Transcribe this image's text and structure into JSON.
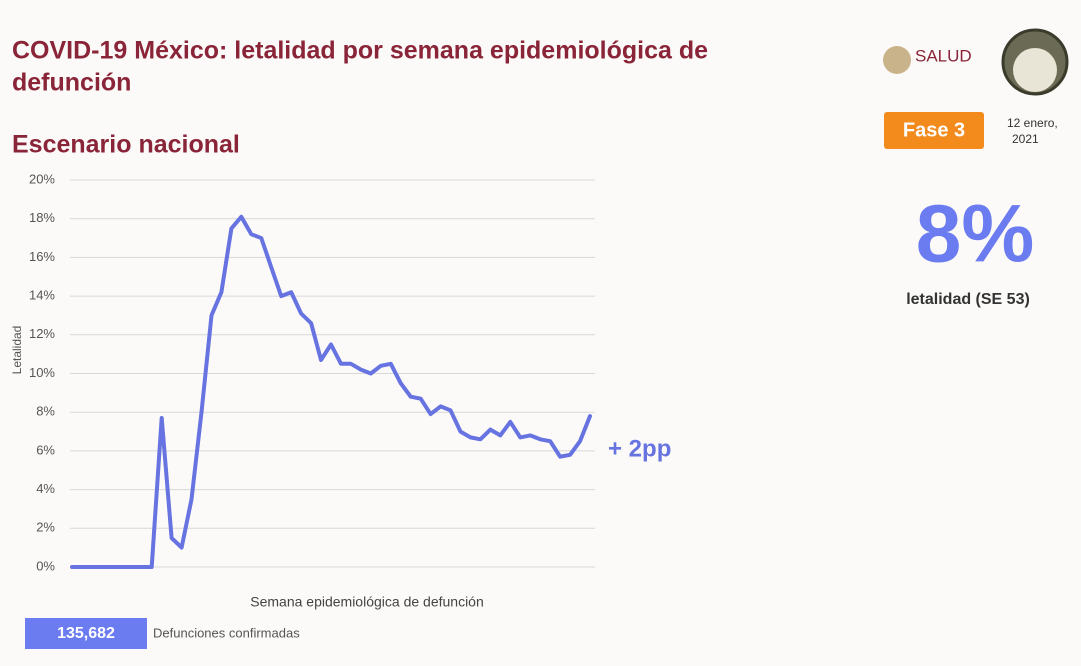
{
  "chart_data": {
    "type": "line",
    "title": "COVID-19 México: letalidad por semana epidemiológica de defunción",
    "subtitle": "Escenario nacional",
    "y_label": "Letalidad",
    "x_label": "Semana epidemiológica de defunción",
    "annotation": "+ 2pp",
    "categories": [
      null,
      null,
      null,
      null,
      null,
      null,
      null,
      null,
      null,
      null,
      null,
      null,
      null,
      null,
      null,
      null,
      null,
      null,
      null,
      null,
      null,
      null,
      null,
      null,
      null,
      null,
      null,
      null,
      null,
      null,
      null,
      null,
      null,
      null,
      null,
      null,
      null,
      null,
      null,
      null,
      null,
      null,
      null,
      null,
      null,
      null,
      null,
      null,
      null,
      null,
      null,
      null,
      null
    ],
    "values": [
      0,
      0,
      0,
      0,
      0,
      0,
      0,
      0,
      0,
      7.7,
      1.5,
      1.0,
      3.5,
      8,
      13,
      14.2,
      17.5,
      18.1,
      17.2,
      17.0,
      15.5,
      14.0,
      14.2,
      13.1,
      12.6,
      10.7,
      11.5,
      10.5,
      10.5,
      10.2,
      10.0,
      10.4,
      10.5,
      9.5,
      8.8,
      8.7,
      7.9,
      8.3,
      8.1,
      7.0,
      6.7,
      6.6,
      7.1,
      6.8,
      7.5,
      6.7,
      6.8,
      6.6,
      6.5,
      5.7,
      5.8,
      6.5,
      7.8
    ],
    "color": "#6673e0",
    "ylim": [
      0,
      20
    ],
    "yticks": [
      {
        "value": 0,
        "label": "0%"
      },
      {
        "value": 2,
        "label": "2%"
      },
      {
        "value": 4,
        "label": "4%"
      },
      {
        "value": 6,
        "label": "6%"
      },
      {
        "value": 8,
        "label": "8%"
      },
      {
        "value": 10,
        "label": "10%"
      },
      {
        "value": 12,
        "label": "12%"
      },
      {
        "value": 14,
        "label": "14%"
      },
      {
        "value": 16,
        "label": "16%"
      },
      {
        "value": 18,
        "label": "18%"
      },
      {
        "value": 20,
        "label": "20%"
      }
    ],
    "grid": true
  },
  "header": {
    "logo_text": "SALUD",
    "phase": "Fase 3",
    "date": [
      "12 enero,",
      "2021"
    ]
  },
  "stat": {
    "value": "8%",
    "label": "letalidad (SE 53)"
  },
  "footer": {
    "count": "135,682",
    "label": "Defunciones confirmadas"
  }
}
